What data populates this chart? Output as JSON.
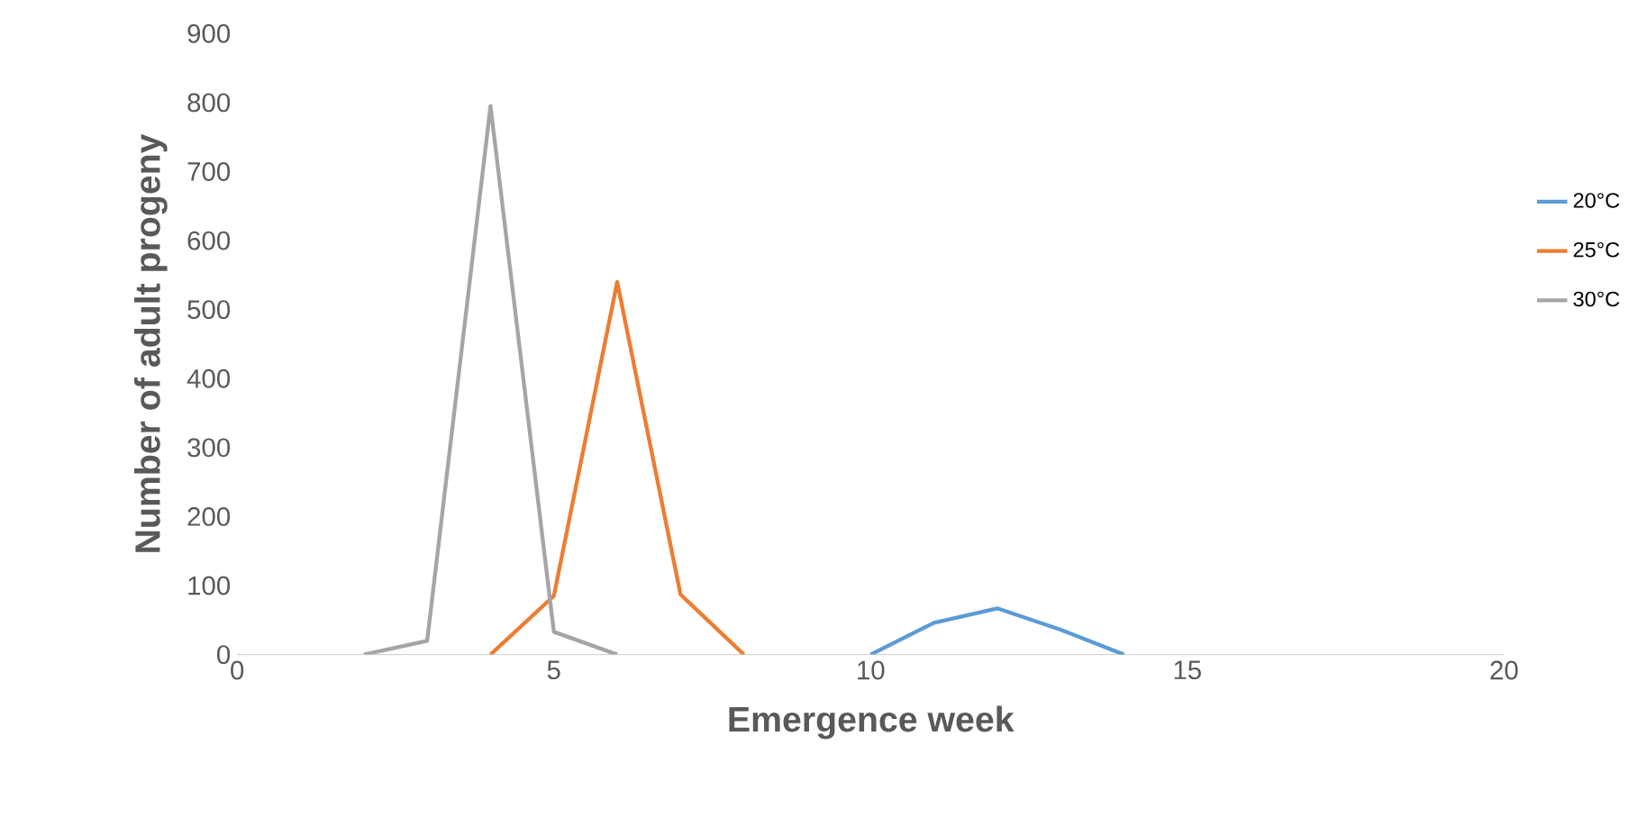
{
  "chart_data": {
    "type": "line",
    "xlabel": "Emergence week",
    "ylabel": "Number of adult progeny",
    "xlim": [
      0,
      20
    ],
    "xticks": [
      0,
      5,
      10,
      15,
      20
    ],
    "ylim": [
      0,
      900
    ],
    "yticks": [
      0,
      100,
      200,
      300,
      400,
      500,
      600,
      700,
      800,
      900
    ],
    "grid": false,
    "legend": "right",
    "line_style": "solid",
    "marker": "none",
    "series": [
      {
        "name": "20°C",
        "color": "#5b9bd5",
        "x": [
          10,
          11,
          12,
          13,
          14
        ],
        "values": [
          0,
          46,
          67,
          36,
          0
        ]
      },
      {
        "name": "25°C",
        "color": "#ed7d31",
        "x": [
          4,
          5,
          6,
          7,
          8
        ],
        "values": [
          0,
          85,
          540,
          87,
          0
        ]
      },
      {
        "name": "30°C",
        "color": "#a5a5a5",
        "x": [
          2,
          3,
          4,
          5,
          6
        ],
        "values": [
          0,
          20,
          795,
          33,
          0
        ]
      }
    ]
  }
}
